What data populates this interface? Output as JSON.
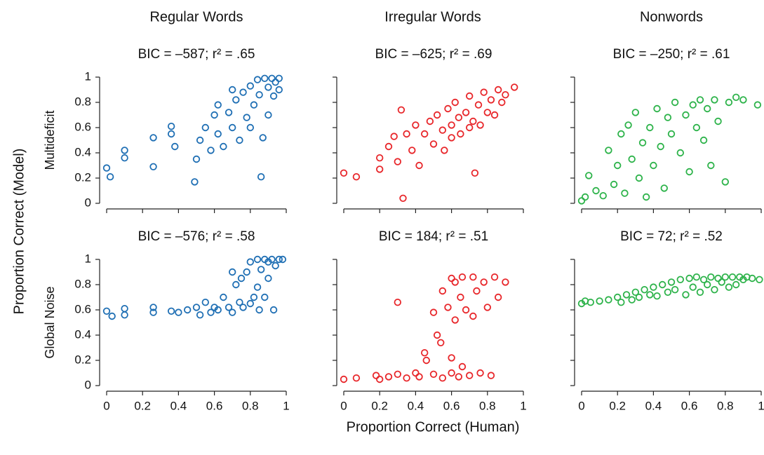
{
  "column_titles": [
    "Regular Words",
    "Irregular Words",
    "Nonwords"
  ],
  "row_labels": [
    "Multideficit",
    "Global Noise"
  ],
  "xlabel": "Proportion Correct (Human)",
  "ylabel": "Proportion Correct (Model)",
  "chart_data": [
    {
      "type": "scatter",
      "title": "BIC = –587; r² = .65",
      "color": "#1f6fb4",
      "xlim": [
        0,
        1
      ],
      "ylim": [
        0,
        1
      ],
      "xticks": [
        0,
        0.2,
        0.4,
        0.6,
        0.8,
        1
      ],
      "yticks": [
        0,
        0.2,
        0.4,
        0.6,
        0.8,
        1
      ],
      "x": [
        0,
        0.02,
        0.1,
        0.1,
        0.26,
        0.26,
        0.36,
        0.36,
        0.38,
        0.49,
        0.5,
        0.52,
        0.55,
        0.58,
        0.6,
        0.62,
        0.62,
        0.65,
        0.68,
        0.7,
        0.7,
        0.72,
        0.74,
        0.76,
        0.78,
        0.8,
        0.8,
        0.82,
        0.84,
        0.85,
        0.86,
        0.87,
        0.88,
        0.9,
        0.9,
        0.92,
        0.93,
        0.94,
        0.96,
        0.96
      ],
      "values": [
        0.28,
        0.21,
        0.42,
        0.36,
        0.52,
        0.29,
        0.61,
        0.55,
        0.45,
        0.17,
        0.35,
        0.5,
        0.6,
        0.42,
        0.7,
        0.78,
        0.55,
        0.45,
        0.72,
        0.9,
        0.6,
        0.82,
        0.5,
        0.88,
        0.68,
        0.93,
        0.6,
        0.78,
        0.98,
        0.86,
        0.21,
        0.52,
        0.99,
        0.92,
        0.7,
        0.99,
        0.85,
        0.96,
        0.99,
        0.9
      ]
    },
    {
      "type": "scatter",
      "title": "BIC = –625; r² = .69",
      "color": "#e8262a",
      "xlim": [
        0,
        1
      ],
      "ylim": [
        0,
        1
      ],
      "xticks": [
        0,
        0.2,
        0.4,
        0.6,
        0.8,
        1
      ],
      "yticks": [
        0,
        0.2,
        0.4,
        0.6,
        0.8,
        1
      ],
      "x": [
        0,
        0.07,
        0.2,
        0.2,
        0.25,
        0.28,
        0.3,
        0.32,
        0.33,
        0.35,
        0.38,
        0.4,
        0.42,
        0.45,
        0.48,
        0.5,
        0.52,
        0.55,
        0.56,
        0.58,
        0.6,
        0.6,
        0.62,
        0.64,
        0.65,
        0.68,
        0.7,
        0.7,
        0.72,
        0.73,
        0.75,
        0.76,
        0.78,
        0.8,
        0.82,
        0.84,
        0.86,
        0.88,
        0.9,
        0.95
      ],
      "values": [
        0.24,
        0.21,
        0.36,
        0.27,
        0.45,
        0.53,
        0.33,
        0.74,
        0.04,
        0.55,
        0.42,
        0.62,
        0.3,
        0.55,
        0.65,
        0.47,
        0.7,
        0.58,
        0.42,
        0.75,
        0.62,
        0.52,
        0.8,
        0.68,
        0.55,
        0.72,
        0.85,
        0.6,
        0.65,
        0.24,
        0.78,
        0.62,
        0.88,
        0.72,
        0.82,
        0.7,
        0.9,
        0.8,
        0.86,
        0.92
      ]
    },
    {
      "type": "scatter",
      "title": "BIC = –250; r² = .61",
      "color": "#2db34a",
      "xlim": [
        0,
        1
      ],
      "ylim": [
        0,
        1
      ],
      "xticks": [
        0,
        0.2,
        0.4,
        0.6,
        0.8,
        1
      ],
      "yticks": [
        0,
        0.2,
        0.4,
        0.6,
        0.8,
        1
      ],
      "x": [
        0,
        0.02,
        0.04,
        0.08,
        0.12,
        0.15,
        0.18,
        0.2,
        0.22,
        0.24,
        0.26,
        0.28,
        0.3,
        0.32,
        0.34,
        0.36,
        0.38,
        0.4,
        0.42,
        0.44,
        0.46,
        0.48,
        0.5,
        0.52,
        0.55,
        0.58,
        0.6,
        0.62,
        0.64,
        0.66,
        0.68,
        0.7,
        0.72,
        0.74,
        0.76,
        0.8,
        0.82,
        0.86,
        0.9,
        0.98
      ],
      "values": [
        0.02,
        0.05,
        0.22,
        0.1,
        0.06,
        0.42,
        0.15,
        0.3,
        0.55,
        0.08,
        0.62,
        0.35,
        0.72,
        0.2,
        0.48,
        0.05,
        0.6,
        0.3,
        0.75,
        0.45,
        0.12,
        0.68,
        0.55,
        0.8,
        0.4,
        0.7,
        0.25,
        0.78,
        0.6,
        0.82,
        0.5,
        0.75,
        0.3,
        0.82,
        0.65,
        0.17,
        0.8,
        0.84,
        0.82,
        0.78
      ]
    },
    {
      "type": "scatter",
      "title": "BIC = –576; r² = .58",
      "color": "#1f6fb4",
      "xlim": [
        0,
        1
      ],
      "ylim": [
        0,
        1
      ],
      "xticks": [
        0,
        0.2,
        0.4,
        0.6,
        0.8,
        1
      ],
      "yticks": [
        0,
        0.2,
        0.4,
        0.6,
        0.8,
        1
      ],
      "x": [
        0,
        0.03,
        0.1,
        0.1,
        0.26,
        0.26,
        0.36,
        0.4,
        0.45,
        0.5,
        0.52,
        0.55,
        0.58,
        0.6,
        0.62,
        0.65,
        0.68,
        0.7,
        0.7,
        0.72,
        0.74,
        0.75,
        0.76,
        0.78,
        0.8,
        0.8,
        0.82,
        0.84,
        0.84,
        0.85,
        0.86,
        0.88,
        0.88,
        0.9,
        0.9,
        0.92,
        0.93,
        0.94,
        0.96,
        0.98
      ],
      "values": [
        0.59,
        0.55,
        0.61,
        0.56,
        0.62,
        0.58,
        0.59,
        0.58,
        0.6,
        0.62,
        0.56,
        0.66,
        0.58,
        0.62,
        0.6,
        0.7,
        0.62,
        0.9,
        0.58,
        0.8,
        0.66,
        0.85,
        0.62,
        0.9,
        0.98,
        0.65,
        0.7,
        1,
        0.78,
        0.6,
        0.92,
        1,
        0.7,
        0.98,
        0.85,
        1,
        0.6,
        0.95,
        1,
        1
      ]
    },
    {
      "type": "scatter",
      "title": "BIC = 184; r² = .51",
      "color": "#e8262a",
      "xlim": [
        0,
        1
      ],
      "ylim": [
        0,
        1
      ],
      "xticks": [
        0,
        0.2,
        0.4,
        0.6,
        0.8,
        1
      ],
      "yticks": [
        0,
        0.2,
        0.4,
        0.6,
        0.8,
        1
      ],
      "x": [
        0,
        0.07,
        0.18,
        0.2,
        0.25,
        0.3,
        0.3,
        0.35,
        0.4,
        0.42,
        0.45,
        0.46,
        0.5,
        0.5,
        0.52,
        0.54,
        0.55,
        0.55,
        0.58,
        0.6,
        0.6,
        0.6,
        0.62,
        0.62,
        0.64,
        0.65,
        0.66,
        0.66,
        0.68,
        0.7,
        0.72,
        0.72,
        0.74,
        0.76,
        0.78,
        0.8,
        0.82,
        0.84,
        0.86,
        0.9
      ],
      "values": [
        0.05,
        0.06,
        0.08,
        0.05,
        0.07,
        0.66,
        0.09,
        0.06,
        0.1,
        0.07,
        0.26,
        0.2,
        0.09,
        0.58,
        0.4,
        0.34,
        0.06,
        0.75,
        0.62,
        0.85,
        0.1,
        0.22,
        0.52,
        0.82,
        0.07,
        0.7,
        0.86,
        0.15,
        0.6,
        0.08,
        0.86,
        0.55,
        0.75,
        0.1,
        0.82,
        0.62,
        0.08,
        0.86,
        0.7,
        0.82
      ]
    },
    {
      "type": "scatter",
      "title": "BIC = 72; r² = .52",
      "color": "#2db34a",
      "xlim": [
        0,
        1
      ],
      "ylim": [
        0,
        1
      ],
      "xticks": [
        0,
        0.2,
        0.4,
        0.6,
        0.8,
        1
      ],
      "yticks": [
        0,
        0.2,
        0.4,
        0.6,
        0.8,
        1
      ],
      "x": [
        0,
        0.02,
        0.05,
        0.1,
        0.15,
        0.2,
        0.22,
        0.25,
        0.28,
        0.3,
        0.32,
        0.35,
        0.38,
        0.4,
        0.42,
        0.45,
        0.48,
        0.5,
        0.52,
        0.55,
        0.58,
        0.6,
        0.62,
        0.64,
        0.66,
        0.68,
        0.7,
        0.72,
        0.74,
        0.76,
        0.78,
        0.8,
        0.82,
        0.84,
        0.86,
        0.88,
        0.9,
        0.92,
        0.95,
        0.99
      ],
      "values": [
        0.65,
        0.67,
        0.66,
        0.67,
        0.68,
        0.7,
        0.66,
        0.72,
        0.68,
        0.74,
        0.7,
        0.76,
        0.72,
        0.78,
        0.71,
        0.8,
        0.74,
        0.82,
        0.76,
        0.84,
        0.72,
        0.85,
        0.78,
        0.86,
        0.74,
        0.84,
        0.8,
        0.86,
        0.76,
        0.85,
        0.82,
        0.86,
        0.78,
        0.86,
        0.8,
        0.86,
        0.84,
        0.86,
        0.85,
        0.84
      ]
    }
  ]
}
